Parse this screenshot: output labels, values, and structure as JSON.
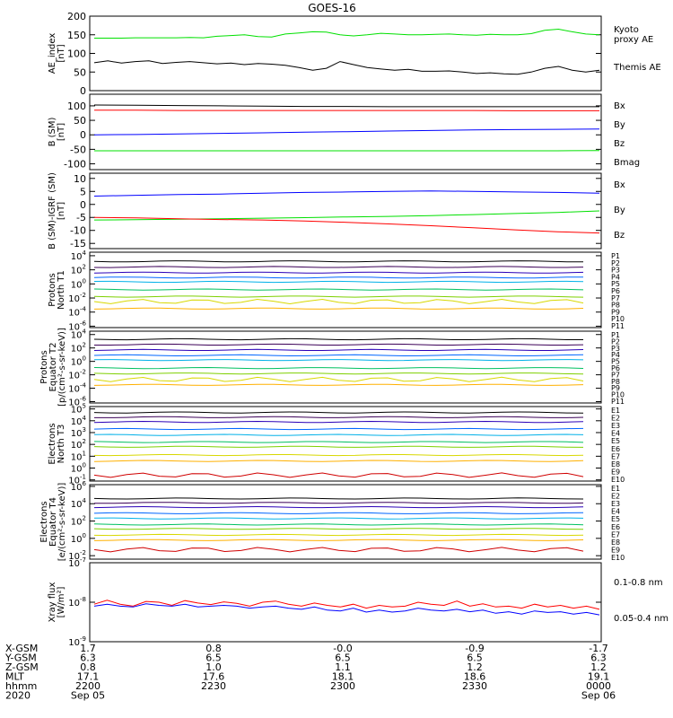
{
  "title": "GOES-16",
  "colors": {
    "green": "#00e000",
    "black": "#000000",
    "blue": "#0000ff",
    "red": "#ff0000",
    "frame": "#000000"
  },
  "ephemeris": {
    "rows": [
      {
        "label": "X-GSM",
        "values": [
          "1.7",
          "0.8",
          "-0.0",
          "-0.9",
          "-1.7"
        ]
      },
      {
        "label": "Y-GSM",
        "values": [
          "6.3",
          "6.5",
          "6.5",
          "6.5",
          "6.3"
        ]
      },
      {
        "label": "Z-GSM",
        "values": [
          "0.8",
          "1.0",
          "1.1",
          "1.2",
          "1.2"
        ]
      },
      {
        "label": "MLT",
        "values": [
          "17.1",
          "17.6",
          "18.1",
          "18.6",
          "19.1"
        ]
      },
      {
        "label": "hhmm",
        "values": [
          "2200",
          "2230",
          "2300",
          "2330",
          "0000"
        ]
      },
      {
        "label": "2020",
        "values": [
          "Sep 05",
          "",
          "",
          "",
          "Sep 06"
        ]
      }
    ]
  },
  "chart_data": [
    {
      "type": "line",
      "ylabel": [
        "AE_index",
        "[nT]"
      ],
      "ylim": [
        0,
        200
      ],
      "ticks": [
        "0",
        "50",
        "100",
        "150",
        "200"
      ],
      "series": [
        {
          "name": "Kyoto proxy AE",
          "color": "#00e000",
          "label_lines": [
            "Kyoto",
            "proxy AE"
          ],
          "values": [
            141,
            141,
            141,
            142,
            142,
            142,
            142,
            143,
            142,
            146,
            148,
            150,
            145,
            144,
            152,
            155,
            158,
            157,
            150,
            147,
            150,
            154,
            152,
            150,
            150,
            151,
            152,
            150,
            149,
            151,
            150,
            150,
            153,
            162,
            165,
            158,
            152,
            150
          ]
        },
        {
          "name": "Themis AE",
          "color": "#000000",
          "label_lines": [
            "Themis AE"
          ],
          "values": [
            75,
            80,
            74,
            78,
            80,
            73,
            76,
            78,
            75,
            72,
            74,
            70,
            73,
            71,
            68,
            62,
            55,
            60,
            78,
            70,
            62,
            58,
            55,
            57,
            52,
            52,
            53,
            50,
            46,
            48,
            45,
            44,
            50,
            60,
            65,
            55,
            50,
            55
          ]
        }
      ]
    },
    {
      "type": "line",
      "ylabel": [
        "B (SM)",
        "[nT]"
      ],
      "ylim": [
        -120,
        140
      ],
      "ticks": [
        "-100",
        "-50",
        "0",
        "50",
        "100"
      ],
      "series": [
        {
          "name": "Bx",
          "color": "#0000ff",
          "label_lines": [
            "Bx"
          ],
          "values": [
            0,
            1,
            3,
            5,
            7,
            9,
            11,
            13,
            15,
            17,
            18,
            19,
            20
          ]
        },
        {
          "name": "By",
          "color": "#00e000",
          "label_lines": [
            "By"
          ],
          "values": [
            -55,
            -55,
            -55,
            -55,
            -55,
            -55,
            -55,
            -55,
            -55,
            -55,
            -55,
            -55,
            -54
          ]
        },
        {
          "name": "Bz",
          "color": "#ff0000",
          "label_lines": [
            "Bz"
          ],
          "values": [
            85,
            85,
            84,
            84,
            84,
            84,
            84,
            84,
            84,
            84,
            83,
            83,
            83
          ]
        },
        {
          "name": "Bmag",
          "color": "#000000",
          "label_lines": [
            "Bmag"
          ],
          "values": [
            103,
            102,
            101,
            100,
            99,
            98,
            98,
            97,
            97,
            97,
            97,
            97,
            97
          ]
        }
      ]
    },
    {
      "type": "line",
      "ylabel": [
        "B (SM)-IGRF (SM)",
        "[nT]"
      ],
      "ylim": [
        -17,
        12
      ],
      "ticks": [
        "-15",
        "-10",
        "-5",
        "0",
        "5",
        "10"
      ],
      "series": [
        {
          "name": "Bx",
          "color": "#0000ff",
          "label_lines": [
            "Bx"
          ],
          "values": [
            3.2,
            3.5,
            3.8,
            4.0,
            4.3,
            4.6,
            4.8,
            5.0,
            5.2,
            5.0,
            4.8,
            4.6,
            4.3
          ]
        },
        {
          "name": "By",
          "color": "#00e000",
          "label_lines": [
            "By"
          ],
          "values": [
            -6.0,
            -5.9,
            -5.7,
            -5.5,
            -5.3,
            -5.1,
            -4.8,
            -4.6,
            -4.3,
            -3.9,
            -3.5,
            -3.1,
            -2.5
          ]
        },
        {
          "name": "Bz",
          "color": "#ff0000",
          "label_lines": [
            "Bz"
          ],
          "values": [
            -5.0,
            -5.2,
            -5.5,
            -5.8,
            -6.0,
            -6.4,
            -6.9,
            -7.5,
            -8.2,
            -9.0,
            -9.8,
            -10.5,
            -11.0
          ]
        }
      ]
    },
    {
      "type": "line",
      "yscale": "log",
      "ylabel": [
        "Protons",
        "North T1"
      ],
      "ylim_log10": [
        -6.2,
        4.5
      ],
      "ticks": [
        {
          "e": 4
        },
        {
          "e": 2
        },
        {
          "e": 0
        },
        {
          "e": -2
        },
        {
          "e": -4
        },
        {
          "e": -6
        }
      ],
      "channels": [
        {
          "name": "P1",
          "color": "#000000",
          "log10": 3.2
        },
        {
          "name": "P2",
          "color": "#3b0057",
          "log10": 2.4
        },
        {
          "name": "P3",
          "color": "#2a00b8",
          "log10": 1.6
        },
        {
          "name": "P4",
          "color": "#0066ff",
          "log10": 0.9
        },
        {
          "name": "P5",
          "color": "#00b0e8",
          "log10": 0.3
        },
        {
          "name": "P6",
          "color": "#00c060",
          "log10": -0.8
        },
        {
          "name": "P7",
          "color": "#7ed000",
          "log10": -1.8
        },
        {
          "name": "P8",
          "color": "#d8d800",
          "log10": -2.5
        },
        {
          "name": "P9",
          "color": "#ffb000",
          "log10": -3.5
        },
        {
          "name": "P10",
          "color": "#ff4000",
          "log10": null
        },
        {
          "name": "P11",
          "color": "#d00000",
          "log10": null
        }
      ]
    },
    {
      "type": "line",
      "yscale": "log",
      "ylabel": [
        "Protons",
        "Equator T2",
        "[p/(cm²-s-sr-keV)]"
      ],
      "ylim_log10": [
        -6.2,
        4.5
      ],
      "ticks": [
        {
          "e": 4
        },
        {
          "e": 2
        },
        {
          "e": 0
        },
        {
          "e": -2
        },
        {
          "e": -4
        },
        {
          "e": -6
        }
      ],
      "channels": [
        {
          "name": "P1",
          "color": "#000000",
          "log10": 3.3
        },
        {
          "name": "P2",
          "color": "#3b0057",
          "log10": 2.5
        },
        {
          "name": "P3",
          "color": "#2a00b8",
          "log10": 1.7
        },
        {
          "name": "P4",
          "color": "#0066ff",
          "log10": 0.9
        },
        {
          "name": "P5",
          "color": "#00b0e8",
          "log10": 0.2
        },
        {
          "name": "P6",
          "color": "#00c060",
          "log10": -1.0
        },
        {
          "name": "P7",
          "color": "#7ed000",
          "log10": -1.8
        },
        {
          "name": "P8",
          "color": "#d8d800",
          "log10": -2.7
        },
        {
          "name": "P9",
          "color": "#ffb000",
          "log10": -3.5
        },
        {
          "name": "P10",
          "color": "#ff4000",
          "log10": null
        },
        {
          "name": "P11",
          "color": "#d00000",
          "log10": null
        }
      ]
    },
    {
      "type": "line",
      "yscale": "log",
      "ylabel": [
        "Electrons",
        "North T3"
      ],
      "ylim_log10": [
        -1.1,
        5.2
      ],
      "ticks": [
        {
          "e": 5
        },
        {
          "e": 4
        },
        {
          "e": 3
        },
        {
          "e": 2
        },
        {
          "e": 1
        },
        {
          "e": 0
        },
        {
          "e": -1
        }
      ],
      "channels": [
        {
          "name": "E1",
          "color": "#000000",
          "log10": 4.7
        },
        {
          "name": "E2",
          "color": "#3b0057",
          "log10": 4.3
        },
        {
          "name": "E3",
          "color": "#2a00b8",
          "log10": 3.9
        },
        {
          "name": "E4",
          "color": "#0066ff",
          "log10": 3.3
        },
        {
          "name": "E5",
          "color": "#00b0e8",
          "log10": 2.8
        },
        {
          "name": "E6",
          "color": "#00c060",
          "log10": 2.2
        },
        {
          "name": "E7",
          "color": "#7ed000",
          "log10": 1.8
        },
        {
          "name": "E8",
          "color": "#d8d800",
          "log10": 1.1
        },
        {
          "name": "E9",
          "color": "#ffb000",
          "log10": 0.6
        },
        {
          "name": "E10",
          "color": "#d00000",
          "log10": -0.6
        }
      ]
    },
    {
      "type": "line",
      "yscale": "log",
      "ylabel": [
        "Electrons",
        "Equator T4",
        "[e/(cm²-s-sr-keV)]"
      ],
      "ylim_log10": [
        -2.4,
        6.2
      ],
      "ticks": [
        {
          "e": 6
        },
        {
          "e": 4
        },
        {
          "e": 2
        },
        {
          "e": 0
        },
        {
          "e": -2
        }
      ],
      "channels": [
        {
          "name": "E1",
          "color": "#000000",
          "log10": 4.6
        },
        {
          "name": "E2",
          "color": "#3b0057",
          "log10": 4.1
        },
        {
          "name": "E3",
          "color": "#2a00b8",
          "log10": 3.6
        },
        {
          "name": "E4",
          "color": "#0066ff",
          "log10": 2.9
        },
        {
          "name": "E5",
          "color": "#00b0e8",
          "log10": 2.3
        },
        {
          "name": "E6",
          "color": "#00c060",
          "log10": 1.6
        },
        {
          "name": "E7",
          "color": "#7ed000",
          "log10": 1.1
        },
        {
          "name": "E8",
          "color": "#d8d800",
          "log10": 0.4
        },
        {
          "name": "E9",
          "color": "#ffb000",
          "log10": -0.2
        },
        {
          "name": "E10",
          "color": "#d00000",
          "log10": -1.3
        }
      ]
    },
    {
      "type": "line",
      "yscale": "log",
      "ylabel": [
        "Xray flux",
        "[W/m²]"
      ],
      "ylim_log10": [
        -9,
        -7
      ],
      "ticks": [
        {
          "e": -7
        },
        {
          "e": -8
        },
        {
          "e": -9
        }
      ],
      "series": [
        {
          "name": "0.1-0.8 nm",
          "color": "#ff0000",
          "label_lines": [
            "0.1-0.8 nm"
          ],
          "values": [
            -8.05,
            -7.95,
            -8.05,
            -8.1,
            -7.98,
            -8.0,
            -8.08,
            -7.96,
            -8.02,
            -8.06,
            -7.99,
            -8.03,
            -8.1,
            -8.0,
            -7.97,
            -8.05,
            -8.1,
            -8.02,
            -8.08,
            -8.12,
            -8.05,
            -8.15,
            -8.08,
            -8.12,
            -8.1,
            -8.0,
            -8.05,
            -8.08,
            -7.97,
            -8.1,
            -8.04,
            -8.12,
            -8.1,
            -8.15,
            -8.05,
            -8.12,
            -8.08,
            -8.15,
            -8.1,
            -8.18
          ]
        },
        {
          "name": "0.05-0.4 nm",
          "color": "#0000ff",
          "label_lines": [
            "0.05-0.4 nm"
          ],
          "values": [
            -8.1,
            -8.05,
            -8.1,
            -8.12,
            -8.04,
            -8.08,
            -8.1,
            -8.05,
            -8.12,
            -8.1,
            -8.08,
            -8.1,
            -8.15,
            -8.12,
            -8.1,
            -8.15,
            -8.18,
            -8.12,
            -8.2,
            -8.22,
            -8.15,
            -8.25,
            -8.2,
            -8.25,
            -8.22,
            -8.15,
            -8.2,
            -8.22,
            -8.18,
            -8.24,
            -8.2,
            -8.28,
            -8.24,
            -8.3,
            -8.22,
            -8.26,
            -8.24,
            -8.3,
            -8.26,
            -8.32
          ]
        }
      ]
    }
  ]
}
